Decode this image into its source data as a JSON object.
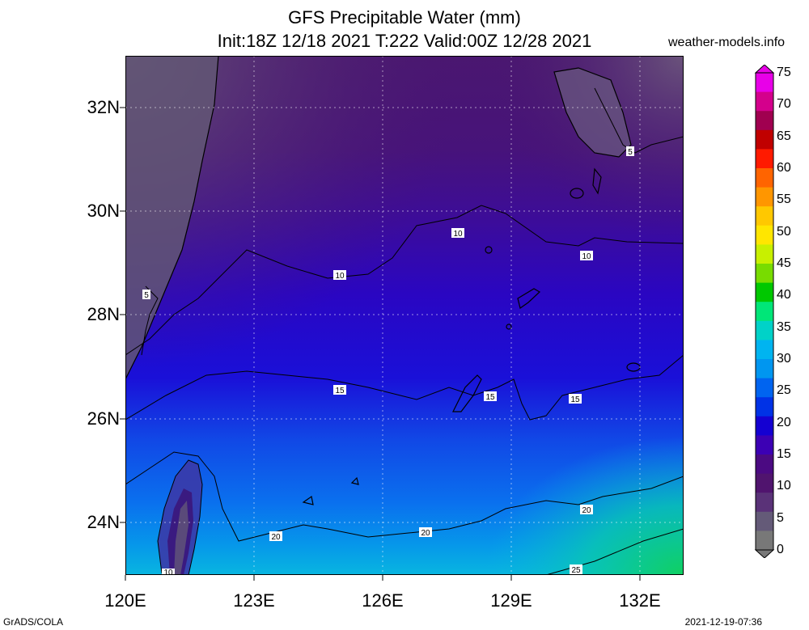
{
  "header": {
    "title": "GFS Precipitable Water (mm)",
    "subtitle": "Init:18Z 12/18 2021 T:222 Valid:00Z 12/28 2021",
    "site": "weather-models.info"
  },
  "map": {
    "lat_labels": [
      "32N",
      "30N",
      "28N",
      "26N",
      "24N"
    ],
    "lon_labels": [
      "120E",
      "123E",
      "126E",
      "129E",
      "132E"
    ],
    "contour_labels": [
      {
        "text": "5"
      },
      {
        "text": "5"
      },
      {
        "text": "10"
      },
      {
        "text": "10"
      },
      {
        "text": "10"
      },
      {
        "text": "10"
      },
      {
        "text": "15"
      },
      {
        "text": "15"
      },
      {
        "text": "15"
      },
      {
        "text": "20"
      },
      {
        "text": "20"
      },
      {
        "text": "20"
      },
      {
        "text": "25"
      }
    ]
  },
  "colorbar": {
    "labels": [
      "75",
      "70",
      "65",
      "60",
      "55",
      "50",
      "45",
      "40",
      "35",
      "30",
      "25",
      "20",
      "15",
      "10",
      "5",
      "0"
    ],
    "colors": [
      "#e800e8",
      "#d4008c",
      "#a00050",
      "#c00000",
      "#ff1a00",
      "#ff6400",
      "#ff9600",
      "#ffc800",
      "#ffe600",
      "#c8f000",
      "#78dc00",
      "#00c800",
      "#00e678",
      "#00d2c8",
      "#00b4f0",
      "#0096f0",
      "#0064f0",
      "#0032e6",
      "#1400d2",
      "#3c00b4",
      "#4b0a82",
      "#50146e",
      "#5a3278",
      "#645a78",
      "#787878"
    ]
  },
  "footer": {
    "credit": "GrADS/COLA",
    "timestamp": "2021-12-19-07:36"
  }
}
